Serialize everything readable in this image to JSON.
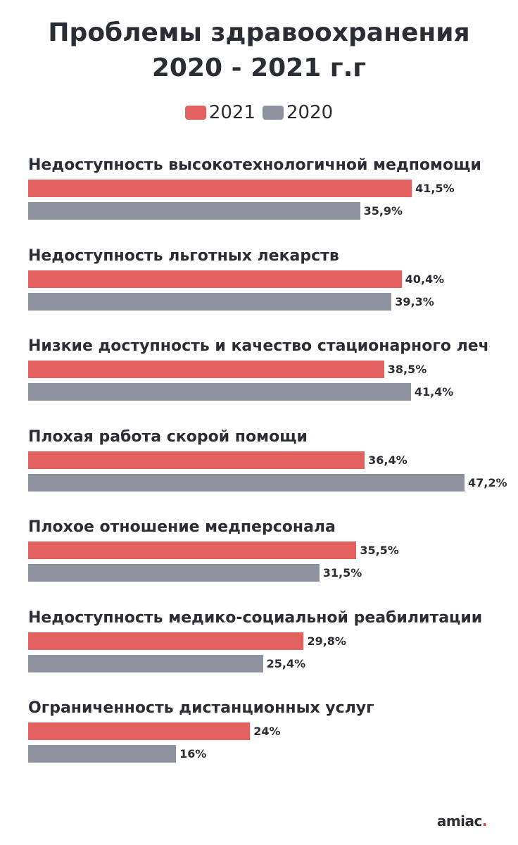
{
  "title_line1": "Проблемы здравоохранения",
  "title_line2": "2020 - 2021 г.г",
  "legend": [
    {
      "label": "2021",
      "color": "#e2615f"
    },
    {
      "label": "2020",
      "color": "#8f93a0"
    }
  ],
  "logo": {
    "text": "amiac",
    "dot": "."
  },
  "chart_data": {
    "type": "bar",
    "orientation": "horizontal",
    "title": "Проблемы здравоохранения 2020 - 2021 г.г",
    "categories": [
      "Недоступность высокотехнологичной медпомощи",
      "Недоступность льготных лекарств",
      "Низкие доступность и качество стационарного лечения",
      "Плохая работа скорой помощи",
      "Плохое отношение медперсонала",
      "Недоступность медико-социальной реабилитации",
      "Ограниченность дистанционных услуг"
    ],
    "series": [
      {
        "name": "2021",
        "color": "#e2615f",
        "values": [
          41.5,
          40.4,
          38.5,
          36.4,
          35.5,
          29.8,
          24
        ],
        "labels": [
          "41,5%",
          "40,4%",
          "38,5%",
          "36,4%",
          "35,5%",
          "29,8%",
          "24%"
        ]
      },
      {
        "name": "2020",
        "color": "#8f93a0",
        "values": [
          35.9,
          39.3,
          41.4,
          47.2,
          31.5,
          25.4,
          16
        ],
        "labels": [
          "35,9%",
          "39,3%",
          "41,4%",
          "47,2%",
          "31,5%",
          "25,4%",
          "16%"
        ]
      }
    ],
    "xlim": [
      0,
      47.2
    ],
    "grid": false,
    "legend_position": "top-center"
  }
}
